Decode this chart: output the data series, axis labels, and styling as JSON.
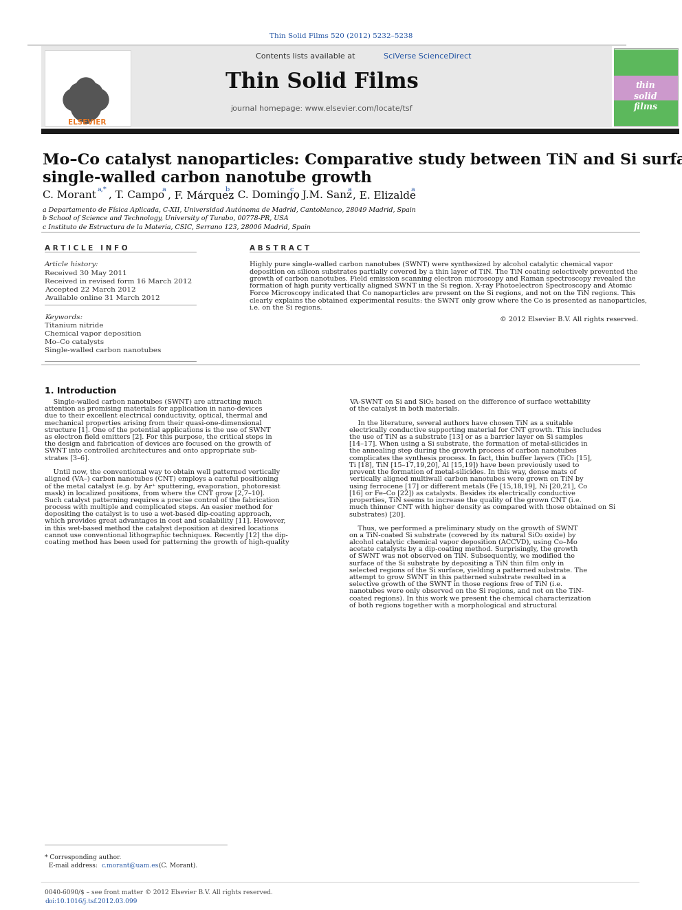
{
  "page_title": "Thin Solid Films 520 (2012) 5232–5238",
  "journal_name": "Thin Solid Films",
  "journal_url": "journal homepage: www.elsevier.com/locate/tsf",
  "contents_text": "Contents lists available at SciVerse ScienceDirect",
  "paper_title_line1": "Mo–Co catalyst nanoparticles: Comparative study between TiN and Si surfaces for",
  "paper_title_line2": "single-walled carbon nanotube growth",
  "affil_a": "a Departamento de Física Aplicada, C-XII, Universidad Autónoma de Madrid, Cantoblanco, 28049 Madrid, Spain",
  "affil_b": "b School of Science and Technology, University of Turabo, 00778-PR, USA",
  "affil_c": "c Instituto de Estructura de la Materia, CSIC, Serrano 123, 28006 Madrid, Spain",
  "article_info_title": "A R T I C L E   I N F O",
  "abstract_title": "A B S T R A C T",
  "article_history_label": "Article history:",
  "received": "Received 30 May 2011",
  "revised": "Received in revised form 16 March 2012",
  "accepted": "Accepted 22 March 2012",
  "available": "Available online 31 March 2012",
  "keywords_label": "Keywords:",
  "keywords": [
    "Titanium nitride",
    "Chemical vapor deposition",
    "Mo–Co catalysts",
    "Single-walled carbon nanotubes"
  ],
  "copyright": "© 2012 Elsevier B.V. All rights reserved.",
  "section1_title": "1. Introduction",
  "abstract_lines": [
    "Highly pure single-walled carbon nanotubes (SWNT) were synthesized by alcohol catalytic chemical vapor",
    "deposition on silicon substrates partially covered by a thin layer of TiN. The TiN coating selectively prevented the",
    "growth of carbon nanotubes. Field emission scanning electron microscopy and Raman spectroscopy revealed the",
    "formation of high purity vertically aligned SWNT in the Si region. X-ray Photoelectron Spectroscopy and Atomic",
    "Force Microscopy indicated that Co nanoparticles are present on the Si regions, and not on the TiN regions. This",
    "clearly explains the obtained experimental results: the SWNT only grow where the Co is presented as nanoparticles,",
    "i.e. on the Si regions."
  ],
  "col1_lines": [
    "    Single-walled carbon nanotubes (SWNT) are attracting much",
    "attention as promising materials for application in nano-devices",
    "due to their excellent electrical conductivity, optical, thermal and",
    "mechanical properties arising from their quasi-one-dimensional",
    "structure [1]. One of the potential applications is the use of SWNT",
    "as electron field emitters [2]. For this purpose, the critical steps in",
    "the design and fabrication of devices are focused on the growth of",
    "SWNT into controlled architectures and onto appropriate sub-",
    "strates [3–6].",
    "",
    "    Until now, the conventional way to obtain well patterned vertically",
    "aligned (VA–) carbon nanotubes (CNT) employs a careful positioning",
    "of the metal catalyst (e.g. by Ar⁺ sputtering, evaporation, photoresist",
    "mask) in localized positions, from where the CNT grow [2,7–10].",
    "Such catalyst patterning requires a precise control of the fabrication",
    "process with multiple and complicated steps. An easier method for",
    "depositing the catalyst is to use a wet-based dip-coating approach,",
    "which provides great advantages in cost and scalability [11]. However,",
    "in this wet-based method the catalyst deposition at desired locations",
    "cannot use conventional lithographic techniques. Recently [12] the dip-",
    "coating method has been used for patterning the growth of high-quality"
  ],
  "col2_lines": [
    "VA-SWNT on Si and SiO₂ based on the difference of surface wettability",
    "of the catalyst in both materials.",
    "",
    "    In the literature, several authors have chosen TiN as a suitable",
    "electrically conductive supporting material for CNT growth. This includes",
    "the use of TiN as a substrate [13] or as a barrier layer on Si samples",
    "[14–17]. When using a Si substrate, the formation of metal-silicides in",
    "the annealing step during the growth process of carbon nanotubes",
    "complicates the synthesis process. In fact, thin buffer layers (TiO₂ [15],",
    "Ti [18], TiN [15–17,19,20], Al [15,19]) have been previously used to",
    "prevent the formation of metal-silicides. In this way, dense mats of",
    "vertically aligned multiwall carbon nanotubes were grown on TiN by",
    "using ferrocene [17] or different metals (Fe [15,18,19], Ni [20,21], Co",
    "[16] or Fe–Co [22]) as catalysts. Besides its electrically conductive",
    "properties, TiN seems to increase the quality of the grown CNT (i.e.",
    "much thinner CNT with higher density as compared with those obtained on Si",
    "substrates) [20].",
    "",
    "    Thus, we performed a preliminary study on the growth of SWNT",
    "on a TiN-coated Si substrate (covered by its natural SiO₂ oxide) by",
    "alcohol catalytic chemical vapor deposition (ACCVD), using Co–Mo",
    "acetate catalysts by a dip-coating method. Surprisingly, the growth",
    "of SWNT was not observed on TiN. Subsequently, we modified the",
    "surface of the Si substrate by depositing a TiN thin film only in",
    "selected regions of the Si surface, yielding a patterned substrate. The",
    "attempt to grow SWNT in this patterned substrate resulted in a",
    "selective growth of the SWNT in those regions free of TiN (i.e.",
    "nanotubes were only observed on the Si regions, and not on the TiN-",
    "coated regions). In this work we present the chemical characterization",
    "of both regions together with a morphological and structural"
  ],
  "bg_color": "#ffffff",
  "header_bg": "#e8e8e8",
  "link_color": "#2455a4",
  "elsevier_color": "#e87722",
  "cover_green": "#5cb85c",
  "cover_purple": "#cc99cc",
  "footer_doi": "doi:10.1016/j.tsf.2012.03.099",
  "footer_issn": "0040-6090/$ – see front matter © 2012 Elsevier B.V. All rights reserved."
}
